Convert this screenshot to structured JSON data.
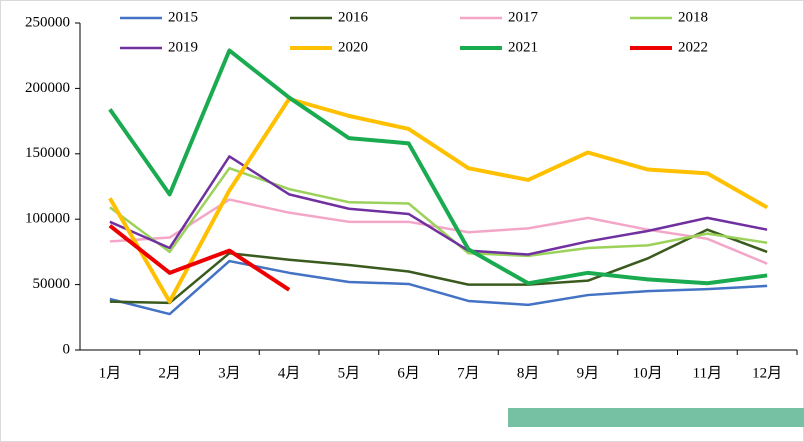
{
  "chart_data": {
    "type": "line",
    "categories": [
      "1月",
      "2月",
      "3月",
      "4月",
      "5月",
      "6月",
      "7月",
      "8月",
      "9月",
      "10月",
      "11月",
      "12月"
    ],
    "ylim": [
      0,
      250000
    ],
    "yticks": [
      0,
      50000,
      100000,
      150000,
      200000,
      250000
    ],
    "series": [
      {
        "name": "2015",
        "color": "#4472c4",
        "width": 2.5,
        "values": [
          39000,
          27500,
          68000,
          59000,
          52000,
          50500,
          37500,
          34500,
          42000,
          45000,
          46500,
          49000
        ]
      },
      {
        "name": "2016",
        "color": "#3a5a1e",
        "width": 2.5,
        "values": [
          37000,
          36000,
          74000,
          69000,
          65000,
          60000,
          50000,
          50000,
          53000,
          70000,
          92000,
          75000
        ]
      },
      {
        "name": "2017",
        "color": "#f4a6c8",
        "width": 2.5,
        "values": [
          83000,
          86000,
          115000,
          105000,
          98000,
          98000,
          90000,
          93000,
          101000,
          92000,
          85000,
          66000
        ]
      },
      {
        "name": "2018",
        "color": "#9bd25a",
        "width": 2.5,
        "values": [
          109000,
          75000,
          139000,
          123000,
          113000,
          112000,
          74000,
          72000,
          78000,
          80000,
          89000,
          82000
        ]
      },
      {
        "name": "2019",
        "color": "#7030a0",
        "width": 2.5,
        "values": [
          98000,
          78000,
          148000,
          119000,
          108000,
          104000,
          76000,
          73000,
          83000,
          91000,
          101000,
          92000
        ]
      },
      {
        "name": "2020",
        "color": "#ffc000",
        "width": 4,
        "values": [
          116000,
          37000,
          122000,
          192000,
          179000,
          169000,
          139000,
          130000,
          151000,
          138000,
          135000,
          109000
        ]
      },
      {
        "name": "2021",
        "color": "#1aaa50",
        "width": 4,
        "values": [
          184000,
          119000,
          229000,
          193000,
          162000,
          158000,
          77000,
          51000,
          59000,
          54000,
          51000,
          57000
        ]
      },
      {
        "name": "2022",
        "color": "#ee0000",
        "width": 4,
        "values": [
          95000,
          59000,
          76000,
          46000,
          null,
          null,
          null,
          null,
          null,
          null,
          null,
          null
        ]
      }
    ]
  }
}
